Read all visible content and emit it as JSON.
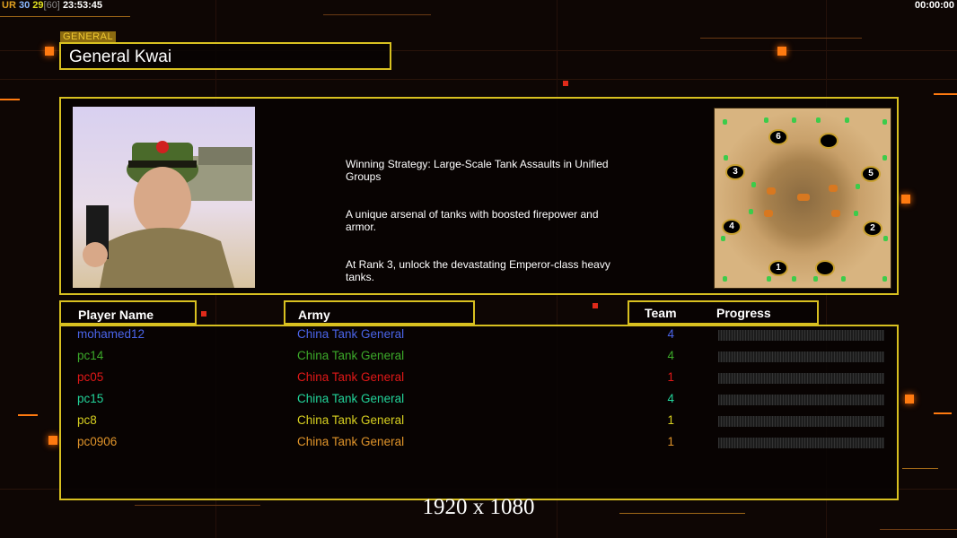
{
  "hud": {
    "ur_label": "UR",
    "fps_a": "30",
    "fps_b": "29",
    "fps_cap": "[60]",
    "clock": "23:53:45",
    "game_timer": "00:00:00"
  },
  "general": {
    "section_label": "GENERAL",
    "name": "General Kwai",
    "description": [
      "Winning Strategy: Large-Scale Tank Assaults in Unified\n Groups",
      "A unique arsenal of tanks with boosted firepower and\n armor.",
      "At Rank 3, unlock the devastating Emperor-class heavy\n tanks."
    ]
  },
  "map": {
    "spawns": [
      "1",
      "2",
      "3",
      "4",
      "5",
      "6"
    ]
  },
  "table": {
    "headers": {
      "player": "Player Name",
      "army": "Army",
      "team": "Team",
      "progress": "Progress"
    },
    "rows": [
      {
        "name": "mohamed12",
        "army": "China Tank General",
        "team": "4",
        "progress": 0,
        "color": "#4a64e8"
      },
      {
        "name": "pc14",
        "army": "China Tank General",
        "team": "4",
        "progress": 0,
        "color": "#3caa2a"
      },
      {
        "name": "pc05",
        "army": "China Tank General",
        "team": "1",
        "progress": 0,
        "color": "#e01818"
      },
      {
        "name": "pc15",
        "army": "China Tank General",
        "team": "4",
        "progress": 0,
        "color": "#22d49a"
      },
      {
        "name": "pc8",
        "army": "China Tank General",
        "team": "1",
        "progress": 0,
        "color": "#d8d020"
      },
      {
        "name": "pc0906",
        "army": "China Tank General",
        "team": "1",
        "progress": 0,
        "color": "#e0942a"
      }
    ]
  },
  "resolution_label": "1920 x 1080",
  "colors": {
    "frame": "#d8c020",
    "accent": "#ff7a10"
  }
}
